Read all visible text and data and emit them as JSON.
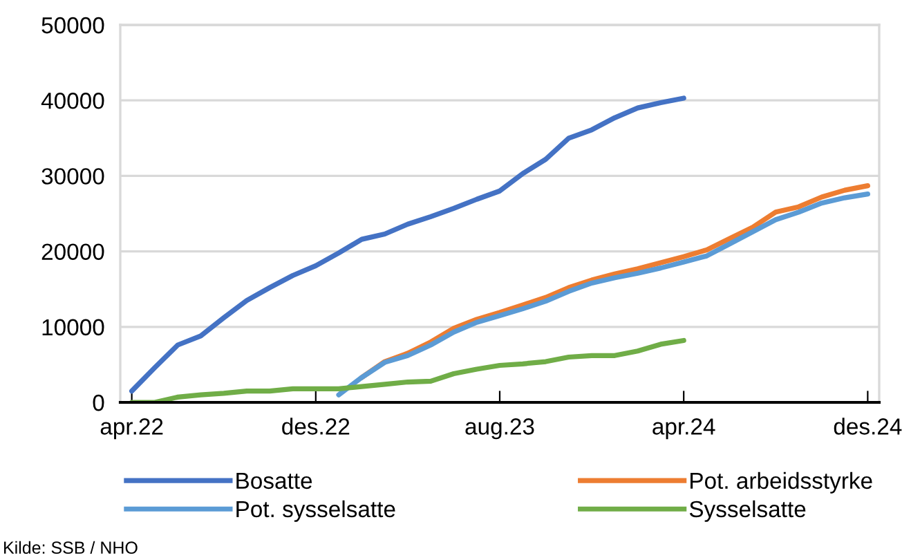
{
  "chart_data": {
    "type": "line",
    "categories": [
      "apr.22",
      null,
      null,
      null,
      null,
      null,
      null,
      null,
      "des.22",
      null,
      null,
      null,
      null,
      null,
      null,
      null,
      "aug.23",
      null,
      null,
      null,
      null,
      null,
      null,
      null,
      "apr.24",
      null,
      null,
      null,
      null,
      null,
      null,
      null,
      "des.24"
    ],
    "series": [
      {
        "name": "Bosatte",
        "color": "#4472c4",
        "values": [
          1500,
          4600,
          7600,
          8800,
          11200,
          13500,
          15200,
          16800,
          18100,
          19800,
          21600,
          22300,
          23600,
          24600,
          25700,
          26900,
          28000,
          30300,
          32200,
          35000,
          36100,
          37700,
          39000,
          39700,
          40300,
          null,
          null,
          null,
          null,
          null,
          null,
          null,
          null
        ]
      },
      {
        "name": "Pot. arbeidsstyrke",
        "color": "#ed7d31",
        "values": [
          null,
          null,
          null,
          null,
          null,
          null,
          null,
          null,
          null,
          null,
          3300,
          5400,
          6500,
          8000,
          9800,
          11000,
          11900,
          12900,
          13900,
          15200,
          16200,
          17000,
          17700,
          18500,
          19300,
          20200,
          21700,
          23200,
          25200,
          25900,
          27200,
          28100,
          28700
        ]
      },
      {
        "name": "Pot. sysselsatte",
        "color": "#5b9bd5",
        "values": [
          null,
          null,
          null,
          null,
          null,
          null,
          null,
          null,
          null,
          1000,
          3300,
          5300,
          6200,
          7600,
          9300,
          10600,
          11500,
          12400,
          13400,
          14700,
          15800,
          16500,
          17100,
          17800,
          18600,
          19400,
          21000,
          22600,
          24200,
          25200,
          26400,
          27100,
          27600
        ]
      },
      {
        "name": "Sysselsatte",
        "color": "#70ad47",
        "values": [
          0,
          0,
          700,
          1000,
          1200,
          1500,
          1500,
          1800,
          1800,
          1800,
          2100,
          2400,
          2700,
          2800,
          3800,
          4400,
          4900,
          5100,
          5400,
          6000,
          6200,
          6200,
          6800,
          7700,
          8200,
          null,
          null,
          null,
          null,
          null,
          null,
          null,
          null
        ]
      }
    ],
    "ylim": [
      0,
      50000
    ],
    "yticks": [
      0,
      10000,
      20000,
      30000,
      40000,
      50000
    ],
    "grid": "y",
    "legend": "bottom",
    "marker": "none",
    "line_style": "solid",
    "annotations": [
      "Kilde: SSB / NHO"
    ]
  }
}
